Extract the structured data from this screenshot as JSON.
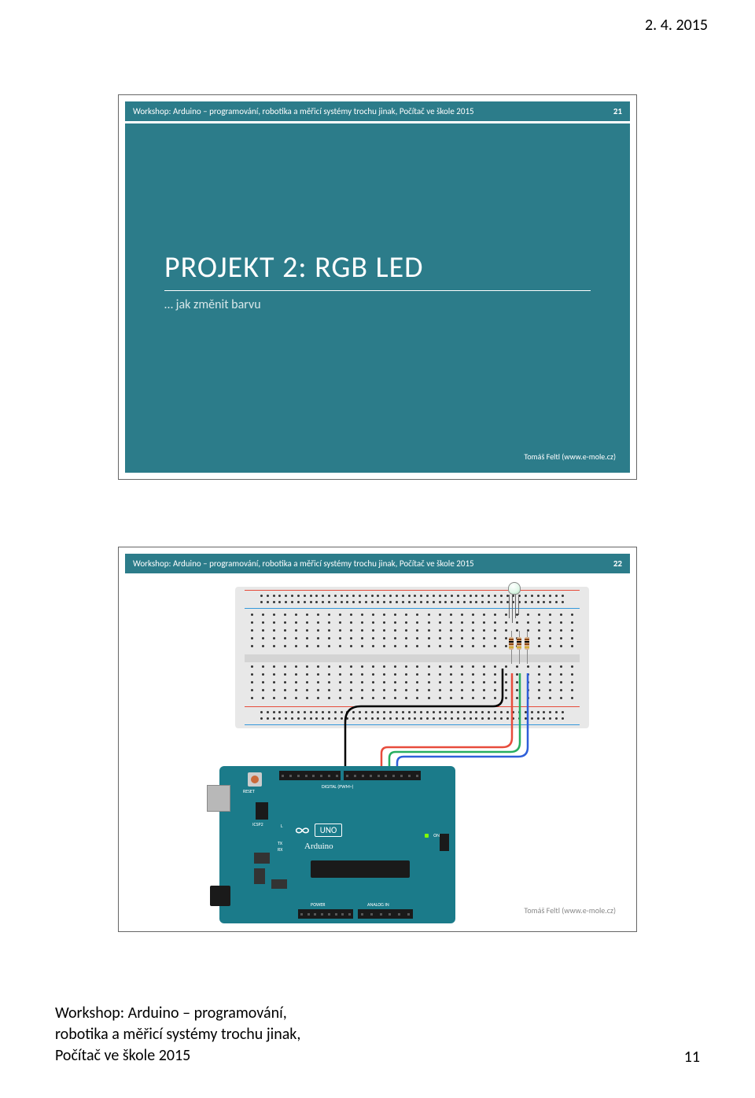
{
  "page": {
    "date": "2. 4. 2015",
    "number": "11",
    "footer_l1": "Workshop: Arduino – programování,",
    "footer_l2": "robotika a měřicí systémy trochu jinak,",
    "footer_l3": "Počítač ve škole 2015"
  },
  "slide21": {
    "header": "Workshop: Arduino – programování, robotika a měřicí systémy trochu jinak, Počítač ve škole 2015",
    "number": "21",
    "title": "PROJEKT 2: RGB LED",
    "subtitle": "… jak změnit barvu",
    "footer": "Tomáš Feltl (www.e-mole.cz)",
    "bg_color": "#2c7c8a"
  },
  "slide22": {
    "header": "Workshop: Arduino – programování, robotika a měřicí systémy trochu jinak, Počítač ve škole 2015",
    "number": "22",
    "footer": "Tomáš Feltl (www.e-mole.cz)",
    "header_bg": "#2c7c8a"
  },
  "diagram": {
    "type": "circuit-schematic",
    "breadboard": {
      "bg": "#e8e8e8",
      "rail_red": "#e74c3c",
      "rail_blue": "#3498db",
      "hole_color": "#333333",
      "columns": 30,
      "rows_per_half": 5
    },
    "rgb_led": {
      "bulb_color": "#dff7e8",
      "legs": 4,
      "column": 15
    },
    "resistors": [
      {
        "col": 15,
        "bands": [
          "#8b4513",
          "#000000",
          "#8b4513",
          "#d4af37"
        ]
      },
      {
        "col": 16,
        "bands": [
          "#8b4513",
          "#000000",
          "#8b4513",
          "#d4af37"
        ]
      },
      {
        "col": 17,
        "bands": [
          "#8b4513",
          "#000000",
          "#8b4513",
          "#d4af37"
        ]
      }
    ],
    "wires": [
      {
        "name": "gnd",
        "color": "#000000",
        "from": "breadboard-led-cathode",
        "to": "arduino-gnd"
      },
      {
        "name": "red-ch",
        "color": "#e74c3c",
        "from": "breadboard-r1",
        "to": "arduino-d11"
      },
      {
        "name": "green-ch",
        "color": "#27ae60",
        "from": "breadboard-r2",
        "to": "arduino-d10"
      },
      {
        "name": "blue-ch",
        "color": "#2e5fd9",
        "from": "breadboard-r3",
        "to": "arduino-d9"
      }
    ],
    "arduino": {
      "board_color": "#1b7b8a",
      "model": "UNO",
      "brand": "Arduino",
      "usb_color": "#b8b8b8",
      "jack_color": "#1a1a1a",
      "reset_label": "RESET",
      "icsp_label": "ICSP2",
      "digital_label": "DIGITAL (PWM~)",
      "power_label": "POWER",
      "analog_label": "ANALOG IN",
      "tx_label": "TX",
      "rx_label": "RX",
      "l_label": "L",
      "on_label": "ON",
      "on_led_color": "#7fff00",
      "headers": {
        "top_digital": 18,
        "bottom_power": 8,
        "bottom_analog": 6
      }
    }
  }
}
